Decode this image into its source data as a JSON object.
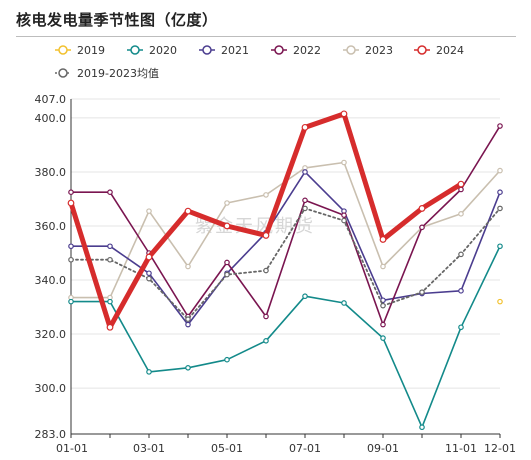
{
  "chart_data": {
    "type": "line",
    "title": "核电发电量季节性图（亿度）",
    "watermark": "紫金天风期货",
    "x": [
      "01-01",
      "02-01",
      "03-01",
      "04-01",
      "05-01",
      "06-01",
      "07-01",
      "08-01",
      "09-01",
      "10-01",
      "11-01",
      "12-01"
    ],
    "x_ticks": [
      "01-01",
      "03-01",
      "05-01",
      "07-01",
      "09-01",
      "11-01",
      "12-01"
    ],
    "ylim": [
      283.0,
      407.0
    ],
    "y_ticks": [
      "283.0",
      "300.0",
      "320.0",
      "340.0",
      "360.0",
      "380.0",
      "400.0",
      "407.0"
    ],
    "grid": "horizontal",
    "legend_position": "top-left",
    "series": [
      {
        "name": "2019",
        "color": "#f2c12e",
        "values": [
          null,
          null,
          null,
          null,
          null,
          null,
          null,
          null,
          null,
          null,
          null,
          332
        ]
      },
      {
        "name": "2020",
        "color": "#138a8a",
        "values": [
          332,
          332,
          306,
          307.5,
          310.5,
          317.5,
          334,
          331.5,
          318.5,
          285.5,
          322.5,
          352.5
        ]
      },
      {
        "name": "2021",
        "color": "#4b3d8f",
        "values": [
          352.5,
          352.5,
          342.5,
          323.5,
          342.5,
          357.5,
          380,
          365.5,
          332.5,
          335,
          336,
          372.5
        ]
      },
      {
        "name": "2022",
        "color": "#7a1550",
        "values": [
          372.5,
          372.5,
          350,
          326.5,
          346.5,
          326.5,
          369.5,
          364,
          323.5,
          359.5,
          373.5,
          397
        ]
      },
      {
        "name": "2023",
        "color": "#c9bfaf",
        "values": [
          333.5,
          333.5,
          365.5,
          345,
          368.5,
          371.5,
          381.5,
          383.5,
          345,
          359.5,
          364.5,
          380.5
        ]
      },
      {
        "name": "2024",
        "color": "#d62c2c",
        "values": [
          368.5,
          322.5,
          348.5,
          365.5,
          360,
          356.5,
          396.5,
          401.5,
          355,
          366.5,
          375.5,
          null
        ]
      },
      {
        "name": "2019-2023均值",
        "color": "#666666",
        "dashed": true,
        "values": [
          347.5,
          347.5,
          340.5,
          325.5,
          342,
          343.5,
          366.5,
          362,
          330.5,
          335.5,
          349.5,
          366.5
        ]
      }
    ]
  }
}
